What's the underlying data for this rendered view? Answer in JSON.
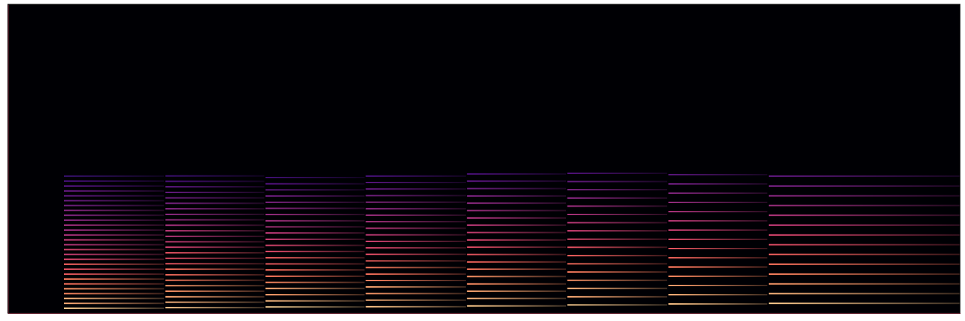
{
  "chart_data": {
    "type": "spectrogram",
    "tick_labels": false,
    "xlim": [
      0,
      9.5
    ],
    "ylim": [
      0,
      11025
    ],
    "color_range": [
      -80,
      0
    ],
    "notes": [
      {
        "start": 0.56,
        "end": 1.56,
        "f0": 174.6,
        "levels": [
          -8,
          -14,
          -12,
          -20,
          -18,
          -24,
          -22,
          -28,
          -30,
          -27,
          -33,
          -36,
          -34,
          -40,
          -38,
          -42,
          -45,
          -44,
          -48,
          -50,
          -49,
          -53,
          -55,
          -57,
          -56,
          -60,
          -62,
          -65
        ]
      },
      {
        "start": 1.57,
        "end": 2.56,
        "f0": 196.0,
        "levels": [
          -9,
          -12,
          -15,
          -18,
          -17,
          -22,
          -25,
          -24,
          -29,
          -31,
          -30,
          -35,
          -37,
          -40,
          -39,
          -43,
          -46,
          -48,
          -50,
          -52,
          -54,
          -56,
          -58,
          -61,
          -64
        ]
      },
      {
        "start": 2.57,
        "end": 3.56,
        "f0": 220.0,
        "levels": [
          -7,
          -11,
          -16,
          -14,
          -20,
          -23,
          -25,
          -28,
          -27,
          -32,
          -34,
          -37,
          -39,
          -42,
          -44,
          -46,
          -49,
          -51,
          -54,
          -57,
          -60,
          -63
        ]
      },
      {
        "start": 3.57,
        "end": 4.57,
        "f0": 233.1,
        "levels": [
          -10,
          -13,
          -17,
          -15,
          -21,
          -24,
          -22,
          -27,
          -31,
          -33,
          -35,
          -38,
          -40,
          -43,
          -45,
          -48,
          -50,
          -53,
          -56,
          -59,
          -62
        ]
      },
      {
        "start": 4.58,
        "end": 5.57,
        "f0": 261.6,
        "levels": [
          -9,
          -12,
          -15,
          -19,
          -18,
          -23,
          -26,
          -29,
          -31,
          -34,
          -36,
          -39,
          -42,
          -45,
          -48,
          -51,
          -54,
          -58,
          -61
        ]
      },
      {
        "start": 5.58,
        "end": 6.58,
        "f0": 293.7,
        "levels": [
          -8,
          -14,
          -13,
          -18,
          -22,
          -25,
          -27,
          -30,
          -33,
          -36,
          -39,
          -42,
          -45,
          -49,
          -52,
          -56,
          -60
        ]
      },
      {
        "start": 6.59,
        "end": 7.58,
        "f0": 329.6,
        "levels": [
          -10,
          -13,
          -16,
          -20,
          -23,
          -26,
          -29,
          -32,
          -36,
          -39,
          -42,
          -46,
          -50,
          -54,
          -58
        ]
      },
      {
        "start": 7.59,
        "end": 9.5,
        "f0": 349.2,
        "levels": [
          -9,
          -12,
          -17,
          -21,
          -24,
          -27,
          -31,
          -34,
          -38,
          -41,
          -45,
          -49,
          -53,
          -57
        ]
      }
    ]
  }
}
